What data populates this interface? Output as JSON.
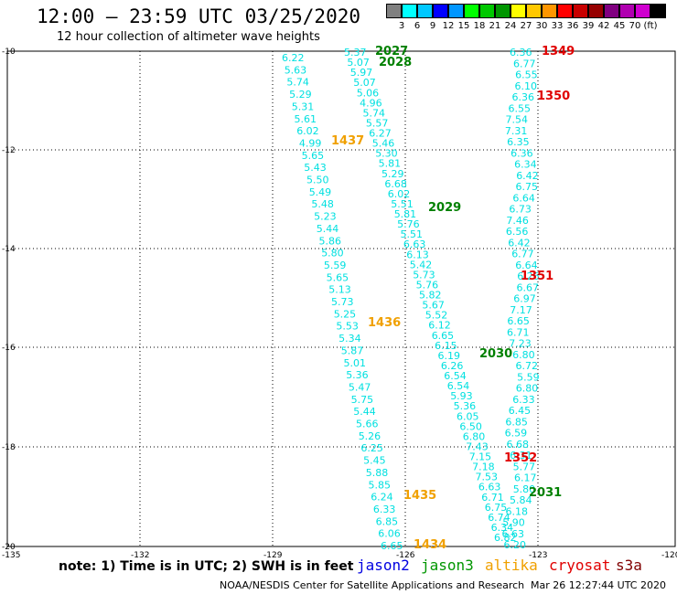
{
  "header": {
    "title": "12:00 – 23:59 UTC 03/25/2020",
    "subtitle": "12 hour collection of altimeter wave heights"
  },
  "legend": {
    "colors": [
      "#808080",
      "#00ffff",
      "#00c8ff",
      "#0000ff",
      "#0096ff",
      "#00ff00",
      "#00c800",
      "#009600",
      "#ffff00",
      "#ffc800",
      "#ff9600",
      "#ff0000",
      "#c80000",
      "#960000",
      "#800080",
      "#b000b0",
      "#d000d0",
      "#000000"
    ],
    "labels": [
      "3",
      "6",
      "9",
      "12",
      "15",
      "18",
      "21",
      "24",
      "27",
      "30",
      "33",
      "36",
      "39",
      "42",
      "45",
      "70",
      "(ft)"
    ]
  },
  "axes": {
    "lat_labels": [
      "-10",
      "-12",
      "-14",
      "-16",
      "-18",
      "-20"
    ],
    "lon_labels": [
      "-135",
      "-132",
      "-129",
      "-126",
      "-123",
      "-120"
    ]
  },
  "tracks": [
    {
      "name": "t1437",
      "color": "#00e0e0",
      "values": [
        "6.22",
        "5.63",
        "5.74",
        "5.29",
        "5.31",
        "5.61",
        "6.02",
        "4.99",
        "5.65",
        "5.43",
        "5.50",
        "5.49",
        "5.48",
        "5.23",
        "5.44",
        "5.86",
        "5.80",
        "5.59",
        "5.65",
        "5.13",
        "5.73",
        "5.25",
        "5.53",
        "5.34",
        "5.87",
        "5.01",
        "5.36",
        "5.47",
        "5.75",
        "5.44",
        "5.66",
        "5.26",
        "6.25",
        "5.45",
        "5.88",
        "5.85",
        "6.24",
        "6.33",
        "6.85",
        "6.06",
        "6.65"
      ]
    },
    {
      "name": "t2028",
      "color": "#00e0e0",
      "values": [
        "5.37",
        "5.07",
        "5.97",
        "5.07",
        "5.06",
        "4.96",
        "5.74",
        "5.57",
        "6.27",
        "5.46",
        "5.30",
        "5.81",
        "5.29",
        "6.68",
        "6.02",
        "5.51",
        "5.81",
        "5.76",
        "5.51",
        "6.63",
        "6.13",
        "5.42",
        "5.73",
        "5.76",
        "5.82",
        "5.67",
        "5.52",
        "6.12",
        "6.65",
        "6.15",
        "6.19",
        "6.26",
        "6.54",
        "6.54",
        "5.93",
        "5.36",
        "6.05",
        "6.50",
        "6.80",
        "7.43",
        "7.15",
        "7.18",
        "7.53",
        "6.63",
        "6.71",
        "6.75",
        "6.74",
        "6.34",
        "6.82"
      ]
    },
    {
      "name": "t1349",
      "color": "#00e0e0",
      "values": [
        "6.36",
        "6.77",
        "6.55",
        "6.10",
        "6.36",
        "6.55",
        "7.54",
        "7.31",
        "6.35",
        "6.36",
        "6.34",
        "6.42",
        "6.75",
        "6.64",
        "6.73",
        "7.46",
        "6.56",
        "6.42",
        "6.77",
        "6.64",
        "6.26",
        "6.67",
        "6.97",
        "7.17",
        "6.65",
        "6.71",
        "7.23",
        "6.80",
        "6.72",
        "5.59",
        "6.80",
        "6.33",
        "6.45",
        "6.85",
        "6.59",
        "6.68",
        "6.31",
        "5.77",
        "6.17",
        "5.80",
        "5.84",
        "6.18",
        "5.90",
        "6.63",
        "6.20"
      ]
    }
  ],
  "pass_labels": [
    {
      "text": "2027",
      "color": "#008000"
    },
    {
      "text": "2028",
      "color": "#008000"
    },
    {
      "text": "1349",
      "color": "#e00000"
    },
    {
      "text": "1350",
      "color": "#e00000"
    },
    {
      "text": "1437",
      "color": "#f0a000"
    },
    {
      "text": "2029",
      "color": "#008000"
    },
    {
      "text": "1351",
      "color": "#e00000"
    },
    {
      "text": "1436",
      "color": "#f0a000"
    },
    {
      "text": "2030",
      "color": "#008000"
    },
    {
      "text": "1352",
      "color": "#e00000"
    },
    {
      "text": "2031",
      "color": "#008000"
    },
    {
      "text": "1435",
      "color": "#f0a000"
    },
    {
      "text": "1434",
      "color": "#f0a000"
    }
  ],
  "footer": {
    "note": "note: 1) Time is in UTC; 2) SWH is in feet",
    "missions": [
      {
        "name": "jason2",
        "color": "#0000e0"
      },
      {
        "name": "jason3",
        "color": "#009600"
      },
      {
        "name": "altika",
        "color": "#f0a000"
      },
      {
        "name": "cryosat",
        "color": "#e00000"
      },
      {
        "name": "s3a",
        "color": "#800000"
      }
    ],
    "credit": "NOAA/NESDIS Center for Satellite Applications and Research",
    "timestamp": "Mar 26 12:27:44 UTC 2020"
  }
}
